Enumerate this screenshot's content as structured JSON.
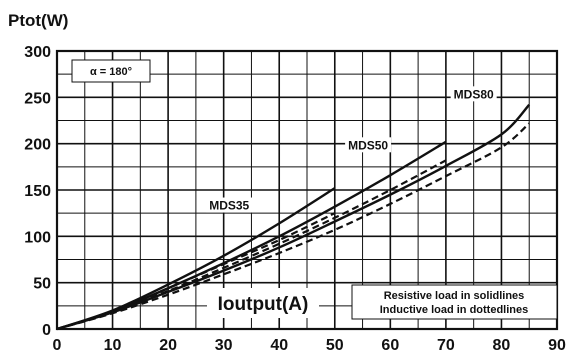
{
  "chart_data": {
    "type": "line",
    "ylabel": "Ptot(W)",
    "xlabel": "Ioutput(A)",
    "xlim": [
      0,
      90
    ],
    "ylim": [
      0,
      300
    ],
    "xticks": [
      "0",
      "10",
      "20",
      "30",
      "40",
      "50",
      "60",
      "70",
      "80",
      "90"
    ],
    "yticks": [
      "0",
      "50",
      "100",
      "150",
      "200",
      "250",
      "300"
    ],
    "grid": true,
    "annotation": "α = 180°",
    "legend": {
      "placement": "bottom-right",
      "lines": [
        "Resistive load in solidlines",
        "Inductive load in dottedlines"
      ]
    },
    "series": [
      {
        "name": "MDS35",
        "load": "resistive",
        "style": "solid",
        "x": [
          0,
          10,
          20,
          30,
          40,
          50
        ],
        "y": [
          0,
          20,
          48,
          79,
          114,
          152
        ]
      },
      {
        "name": "MDS35",
        "load": "inductive",
        "style": "dotted",
        "x": [
          0,
          10,
          20,
          30,
          40,
          50
        ],
        "y": [
          0,
          19,
          44,
          70,
          96,
          125
        ]
      },
      {
        "name": "MDS50",
        "load": "resistive",
        "style": "solid",
        "x": [
          0,
          10,
          20,
          30,
          40,
          50,
          60,
          70
        ],
        "y": [
          0,
          19,
          44,
          71,
          100,
          132,
          166,
          202
        ]
      },
      {
        "name": "MDS50",
        "load": "inductive",
        "style": "dotted",
        "x": [
          0,
          10,
          20,
          30,
          40,
          50,
          60,
          70
        ],
        "y": [
          0,
          18,
          41,
          66,
          92,
          120,
          150,
          182
        ]
      },
      {
        "name": "MDS80",
        "load": "resistive",
        "style": "solid",
        "x": [
          0,
          10,
          20,
          30,
          40,
          50,
          60,
          70,
          80,
          85
        ],
        "y": [
          0,
          18,
          40,
          63,
          88,
          116,
          145,
          176,
          210,
          242
        ]
      },
      {
        "name": "MDS80",
        "load": "inductive",
        "style": "dotted",
        "x": [
          0,
          10,
          20,
          30,
          40,
          50,
          60,
          70,
          80,
          85
        ],
        "y": [
          0,
          17,
          37,
          59,
          82,
          107,
          135,
          165,
          196,
          222
        ]
      }
    ],
    "series_labels": [
      {
        "text": "MDS35",
        "x": 31,
        "y": 130
      },
      {
        "text": "MDS50",
        "x": 56,
        "y": 195
      },
      {
        "text": "MDS80",
        "x": 75,
        "y": 250
      }
    ]
  }
}
